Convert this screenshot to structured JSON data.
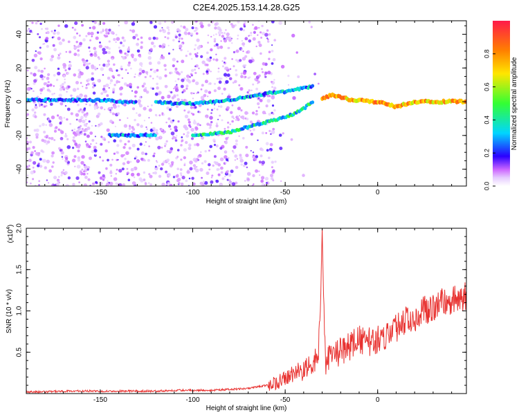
{
  "title": "C2E4.2025.153.14.28.G25",
  "colors": {
    "snr_line": "#e8312f",
    "axis": "#000000",
    "signal_cmap": [
      "#ffffff",
      "#d9b8f5",
      "#a466f0",
      "#7a1fe6",
      "#2a00ff",
      "#00e5ff",
      "#33ff33",
      "#ffe600",
      "#ff3300"
    ]
  },
  "chart_data": [
    {
      "type": "heatmap",
      "title": "C2E4.2025.153.14.28.G25",
      "xlabel": "Height of straight line (km)",
      "ylabel": "Frequency (Hz)",
      "xlim": [
        -190,
        48
      ],
      "ylim": [
        -50,
        48
      ],
      "xticks": [
        -150,
        -100,
        -50,
        0
      ],
      "xtick_labels": [
        "-150",
        "-100",
        "-50",
        "0"
      ],
      "yticks": [
        -40,
        -20,
        0,
        20,
        40
      ],
      "ytick_labels": [
        "-40",
        "-20",
        "0",
        "20",
        "40"
      ],
      "colorbar": {
        "label": "Normalized spectral amplitude",
        "range": [
          0,
          1
        ],
        "ticks": [
          0.0,
          0.2,
          0.4,
          0.6,
          0.8
        ],
        "tick_labels": [
          "0.0",
          "0.2",
          "0.4",
          "0.6",
          "0.8"
        ]
      },
      "tracks": [
        {
          "x": [
            -190,
            -170,
            -150,
            -140,
            -130
          ],
          "y": [
            1,
            1,
            1,
            0,
            0
          ],
          "amplitude": 0.3
        },
        {
          "x": [
            -145,
            -135,
            -125,
            -120
          ],
          "y": [
            -20,
            -20,
            -20,
            -20
          ],
          "amplitude": 0.35
        },
        {
          "x": [
            -120,
            -110,
            -100,
            -90,
            -80,
            -70,
            -60,
            -50,
            -40,
            -35
          ],
          "y": [
            0,
            -1,
            -1,
            0,
            1,
            3,
            5,
            6,
            8,
            9
          ],
          "amplitude": 0.35
        },
        {
          "x": [
            -100,
            -90,
            -80,
            -70,
            -60,
            -50,
            -45,
            -40,
            -35
          ],
          "y": [
            -20,
            -19,
            -18,
            -15,
            -12,
            -9,
            -7,
            -4,
            0
          ],
          "amplitude": 0.45
        },
        {
          "x": [
            -30,
            -25,
            -20,
            -15,
            -10,
            -5,
            0,
            5,
            10,
            20,
            30,
            40,
            48
          ],
          "y": [
            2,
            4,
            3,
            1,
            1,
            0,
            0,
            -1,
            -3,
            0,
            0,
            0,
            0
          ],
          "amplitude": 0.85
        }
      ]
    },
    {
      "type": "line",
      "xlabel": "Height of straight line (km)",
      "ylabel": "SNR (10 * v/v)",
      "y_multiplier": "(x10^4)",
      "y_multiplier_base": "(x10",
      "y_multiplier_exp": "4",
      "y_multiplier_close": ")",
      "xlim": [
        -190,
        48
      ],
      "ylim": [
        0,
        2.0
      ],
      "xticks": [
        -150,
        -100,
        -50,
        0
      ],
      "xtick_labels": [
        "-150",
        "-100",
        "-50",
        "0"
      ],
      "yticks": [
        0.5,
        1.0,
        1.5,
        2.0
      ],
      "ytick_labels": [
        "0.5",
        "1.0",
        "1.5",
        "2.0"
      ],
      "series": [
        {
          "x": [
            -190,
            -180,
            -170,
            -160,
            -150,
            -140,
            -130,
            -120,
            -110,
            -100,
            -90,
            -80,
            -70,
            -65,
            -60,
            -55,
            -50,
            -45,
            -40,
            -35,
            -32,
            -31,
            -30,
            -29,
            -28,
            -27,
            -25,
            -22,
            -20,
            -15,
            -10,
            -5,
            0,
            5,
            10,
            15,
            20,
            25,
            30,
            35,
            40,
            45,
            48
          ],
          "y": [
            0.02,
            0.02,
            0.03,
            0.03,
            0.03,
            0.03,
            0.03,
            0.03,
            0.04,
            0.04,
            0.04,
            0.05,
            0.06,
            0.08,
            0.1,
            0.13,
            0.18,
            0.22,
            0.28,
            0.35,
            0.5,
            0.95,
            2.0,
            0.9,
            0.35,
            0.38,
            0.45,
            0.48,
            0.5,
            0.58,
            0.65,
            0.62,
            0.65,
            0.72,
            0.8,
            0.88,
            0.92,
            1.0,
            1.05,
            1.1,
            1.13,
            1.16,
            1.18
          ]
        }
      ]
    }
  ]
}
